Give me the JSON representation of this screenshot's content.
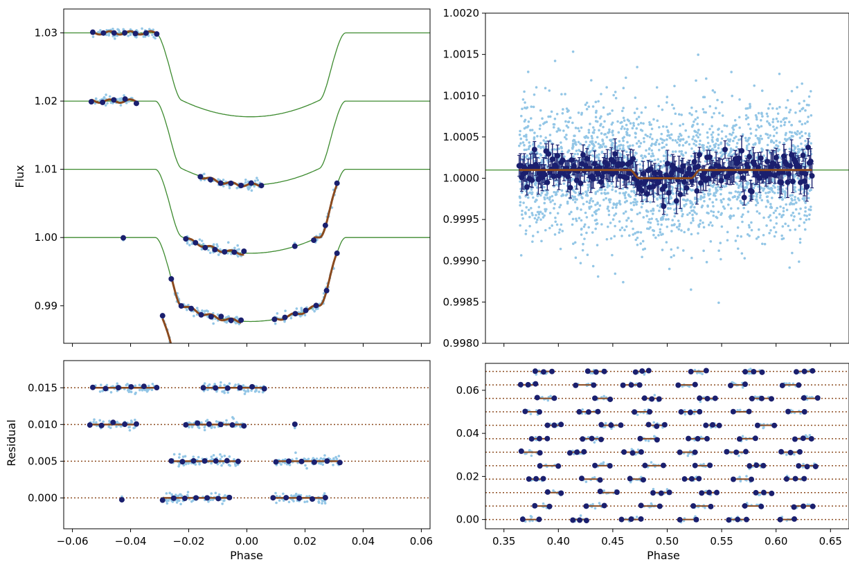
{
  "chart_data": [
    {
      "panel": "top-left",
      "type": "scatter",
      "title": "",
      "xlabel": "",
      "ylabel": "Flux",
      "xlim": [
        -0.063,
        0.063
      ],
      "ylim": [
        0.9845,
        1.0335
      ],
      "yticks": [
        0.99,
        1.0,
        1.01,
        1.02,
        1.03
      ],
      "ytick_labels": [
        "0.99",
        "1.00",
        "1.01",
        "1.02",
        "1.03"
      ],
      "xticks": [
        -0.06,
        -0.04,
        -0.02,
        0.0,
        0.02,
        0.04,
        0.06
      ],
      "model_offsets": [
        1.0,
        1.01,
        1.02,
        1.03
      ],
      "model_depth": 0.0123,
      "transit_ingress_center": -0.027,
      "transit_egress_center": 0.0295,
      "segments": [
        {
          "offset": 1.03,
          "ranges": [
            [
              -0.053,
              -0.031
            ]
          ]
        },
        {
          "offset": 1.02,
          "ranges": [
            [
              -0.0535,
              -0.038
            ],
            [
              -0.016,
              0.005
            ]
          ]
        },
        {
          "offset": 1.01,
          "ranges": [
            [
              -0.021,
              -0.001
            ],
            [
              0.016,
              0.017
            ],
            [
              0.023,
              0.031
            ]
          ]
        },
        {
          "offset": 1.0,
          "ranges": [
            [
              -0.026,
              -0.002
            ],
            [
              0.0095,
              0.031
            ],
            [
              -0.0425,
              -0.0425
            ]
          ]
        },
        {
          "offset": 0.99,
          "ranges": [
            [
              -0.029,
              -0.007
            ],
            [
              0.009,
              0.027
            ]
          ]
        }
      ],
      "colors": {
        "raw": "#93c6e6",
        "binned": "#1a1f6e",
        "model": "#3c8a2e",
        "gp": "#8b4a1e"
      }
    },
    {
      "panel": "top-right",
      "type": "scatter",
      "title": "",
      "xlabel": "",
      "ylabel": "",
      "xlim": [
        0.333,
        0.667
      ],
      "ylim": [
        0.998,
        1.002
      ],
      "yticks": [
        0.998,
        0.9985,
        0.999,
        0.9995,
        1.0,
        1.0005,
        1.001,
        1.0015,
        1.002
      ],
      "ytick_labels": [
        "0.9980",
        "0.9985",
        "0.9990",
        "0.9995",
        "1.0000",
        "1.0005",
        "1.0010",
        "1.0015",
        "1.0020"
      ],
      "xticks": [
        0.35,
        0.4,
        0.45,
        0.5,
        0.55,
        0.6,
        0.65
      ],
      "data_range": [
        0.364,
        0.633
      ],
      "baseline": 1.0001,
      "eclipse_depth": 0.0001,
      "eclipse_range": [
        0.47,
        0.526
      ],
      "scatter_sigma": 0.0004,
      "binned_sigma": 0.00011,
      "colors": {
        "raw": "#93c6e6",
        "binned": "#1a1f6e",
        "model": "#3c8a2e",
        "gp": "#8b4a1e"
      }
    },
    {
      "panel": "bottom-left",
      "type": "scatter",
      "title": "",
      "xlabel": "Phase",
      "ylabel": "Residual",
      "xlim": [
        -0.063,
        0.063
      ],
      "ylim": [
        -0.0042,
        0.0187
      ],
      "yticks": [
        0.0,
        0.005,
        0.01,
        0.015
      ],
      "ytick_labels": [
        "0.000",
        "0.005",
        "0.010",
        "0.015"
      ],
      "xticks": [
        -0.06,
        -0.04,
        -0.02,
        0.0,
        0.02,
        0.04,
        0.06
      ],
      "xtick_labels": [
        "−0.06",
        "−0.04",
        "−0.02",
        "0.00",
        "0.02",
        "0.04",
        "0.06"
      ],
      "offsets": [
        0.0,
        0.005,
        0.01,
        0.015
      ],
      "segments": [
        {
          "offset": 0.015,
          "ranges": [
            [
              -0.053,
              -0.031
            ],
            [
              -0.015,
              0.006
            ]
          ]
        },
        {
          "offset": 0.01,
          "ranges": [
            [
              -0.054,
              -0.038
            ],
            [
              -0.021,
              -0.001
            ],
            [
              0.0165,
              0.0165
            ]
          ]
        },
        {
          "offset": 0.005,
          "ranges": [
            [
              -0.026,
              -0.003
            ],
            [
              0.01,
              0.032
            ]
          ]
        },
        {
          "offset": 0.0,
          "ranges": [
            [
              -0.043,
              -0.043
            ],
            [
              -0.029,
              -0.006
            ],
            [
              0.009,
              0.027
            ]
          ]
        }
      ],
      "colors": {
        "raw": "#93c6e6",
        "binned": "#1a1f6e",
        "line": "#8b4a1e"
      }
    },
    {
      "panel": "bottom-right",
      "type": "scatter",
      "title": "",
      "xlabel": "Phase",
      "ylabel": "",
      "xlim": [
        0.333,
        0.667
      ],
      "ylim": [
        -0.0043,
        0.0725
      ],
      "yticks": [
        0.0,
        0.02,
        0.04,
        0.06
      ],
      "ytick_labels": [
        "0.00",
        "0.02",
        "0.04",
        "0.06"
      ],
      "xticks": [
        0.35,
        0.4,
        0.45,
        0.5,
        0.55,
        0.6,
        0.65
      ],
      "xtick_labels": [
        "0.35",
        "0.40",
        "0.45",
        "0.50",
        "0.55",
        "0.60",
        "0.65"
      ],
      "offset_step": 0.00625,
      "n_rows": 12,
      "colors": {
        "raw": "#93c6e6",
        "binned": "#1a1f6e",
        "line": "#8b4a1e"
      }
    }
  ]
}
